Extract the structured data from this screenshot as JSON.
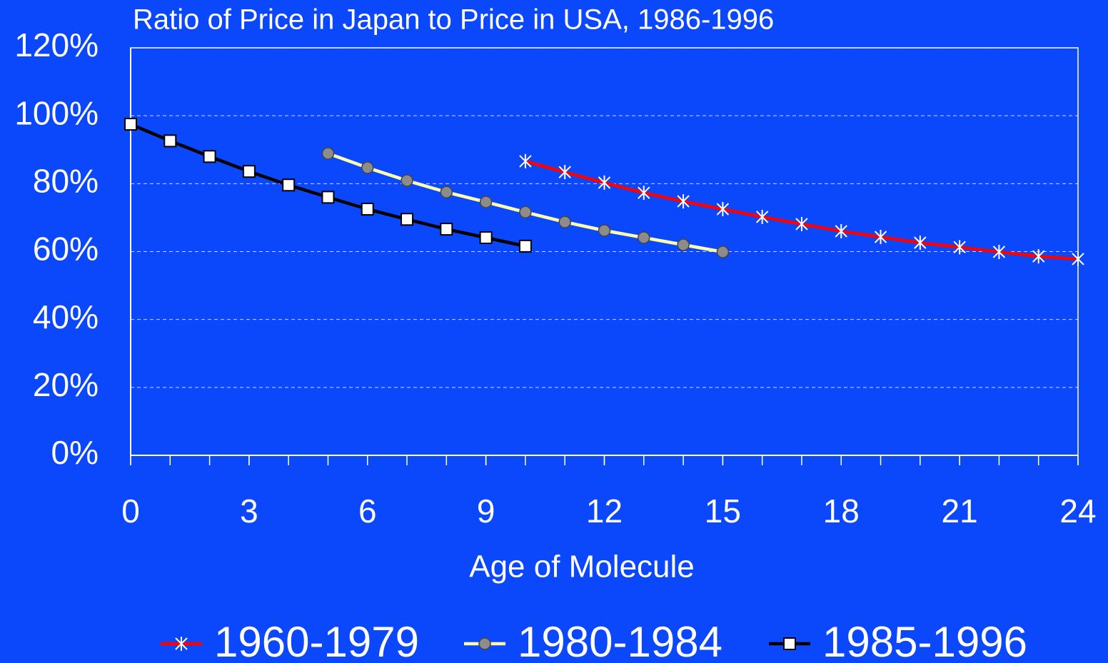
{
  "chart_data": {
    "type": "line",
    "title": "Ratio of Price in Japan to Price in USA, 1986-1996",
    "x_label": "Age of Molecule",
    "xlim": [
      0,
      24
    ],
    "xticks": [
      0,
      3,
      6,
      9,
      12,
      15,
      18,
      21,
      24
    ],
    "ylim": [
      0,
      120
    ],
    "yticks": [
      {
        "value": 0,
        "label": "0%"
      },
      {
        "value": 20,
        "label": "20%"
      },
      {
        "value": 40,
        "label": "40%"
      },
      {
        "value": 60,
        "label": "60%"
      },
      {
        "value": 80,
        "label": "80%"
      },
      {
        "value": 100,
        "label": "100%"
      },
      {
        "value": 120,
        "label": "120%"
      }
    ],
    "grid": true,
    "legend": "bottom",
    "series": [
      {
        "name": "1960-1979",
        "color": "#ff0000",
        "marker": "asterisk",
        "x": [
          10,
          11,
          12,
          13,
          14,
          15,
          16,
          17,
          18,
          19,
          20,
          21,
          22,
          23,
          24
        ],
        "values": [
          86.6,
          83.4,
          80.3,
          77.3,
          74.8,
          72.5,
          70.2,
          68.1,
          66,
          64.3,
          62.6,
          61.3,
          59.9,
          58.6,
          57.8
        ]
      },
      {
        "name": "1980-1984",
        "color": "#ffffaa",
        "marker": "circle",
        "x": [
          5,
          6,
          7,
          8,
          9,
          10,
          11,
          12,
          13,
          14,
          15
        ],
        "values": [
          88.9,
          84.7,
          80.9,
          77.5,
          74.6,
          71.6,
          68.7,
          66.2,
          64.1,
          62,
          59.9
        ]
      },
      {
        "name": "1985-1996",
        "color": "#000000",
        "marker": "square",
        "x": [
          0,
          1,
          2,
          3,
          4,
          5,
          6,
          7,
          8,
          9,
          10
        ],
        "values": [
          97.5,
          92.6,
          88,
          83.6,
          79.6,
          76,
          72.5,
          69.5,
          66.6,
          64.1,
          61.6
        ]
      }
    ]
  }
}
